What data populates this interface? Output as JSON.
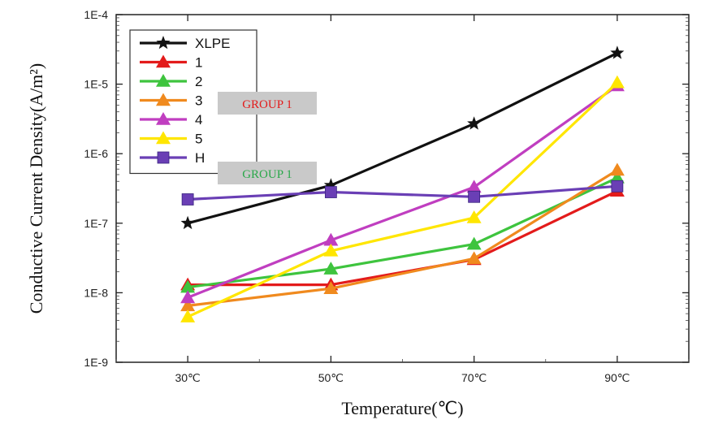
{
  "chart_data": {
    "type": "line",
    "x_unit_labels": [
      "30℃",
      "50℃",
      "70℃",
      "90℃"
    ],
    "x": [
      30,
      50,
      70,
      90
    ],
    "xlabel": "Temperature(℃)",
    "ylabel": "Conductive Current Density(A/m²)",
    "yscale": "log",
    "ylim": [
      1e-09,
      0.0001
    ],
    "yticks": [
      "1E-9",
      "1E-8",
      "1E-7",
      "1E-6",
      "1E-5",
      "1E-4"
    ],
    "legend_position": "top-left",
    "series": [
      {
        "name": "XLPE",
        "color": "#111111",
        "marker": "star",
        "values": [
          1e-07,
          3.5e-07,
          2.7e-06,
          2.8e-05
        ]
      },
      {
        "name": "1",
        "color": "#e31b1b",
        "marker": "triangle",
        "values": [
          1.3e-08,
          1.3e-08,
          3e-08,
          2.9e-07
        ]
      },
      {
        "name": "2",
        "color": "#3ec43e",
        "marker": "triangle",
        "values": [
          1.2e-08,
          2.2e-08,
          5e-08,
          4.5e-07
        ]
      },
      {
        "name": "3",
        "color": "#f08a1e",
        "marker": "triangle",
        "values": [
          6.5e-09,
          1.15e-08,
          3.1e-08,
          5.8e-07
        ]
      },
      {
        "name": "4",
        "color": "#c03ec0",
        "marker": "triangle",
        "values": [
          8.5e-09,
          5.7e-08,
          3.3e-07,
          9.5e-06
        ]
      },
      {
        "name": "5",
        "color": "#ffe600",
        "marker": "triangle",
        "values": [
          4.5e-09,
          4e-08,
          1.2e-07,
          1.05e-05
        ]
      },
      {
        "name": "H",
        "color": "#6a3fb5",
        "marker": "square",
        "values": [
          2.2e-07,
          2.8e-07,
          2.4e-07,
          3.4e-07
        ]
      }
    ],
    "annotations": [
      {
        "text": "GROUP 1",
        "color": "#e31b1b"
      },
      {
        "text": "GROUP 1",
        "color": "#2aa84a"
      }
    ]
  }
}
